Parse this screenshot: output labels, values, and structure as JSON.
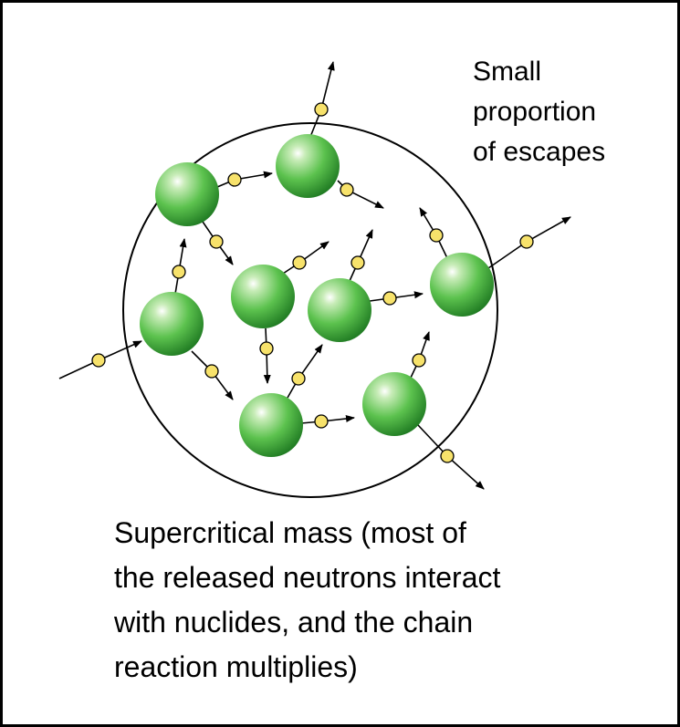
{
  "annotation": {
    "lines": [
      "Small",
      "proportion",
      "of escapes"
    ]
  },
  "caption": {
    "lines": [
      "Supercritical mass (most of",
      "the released neutrons interact",
      "with nuclides, and the chain",
      "reaction multiplies)"
    ]
  }
}
